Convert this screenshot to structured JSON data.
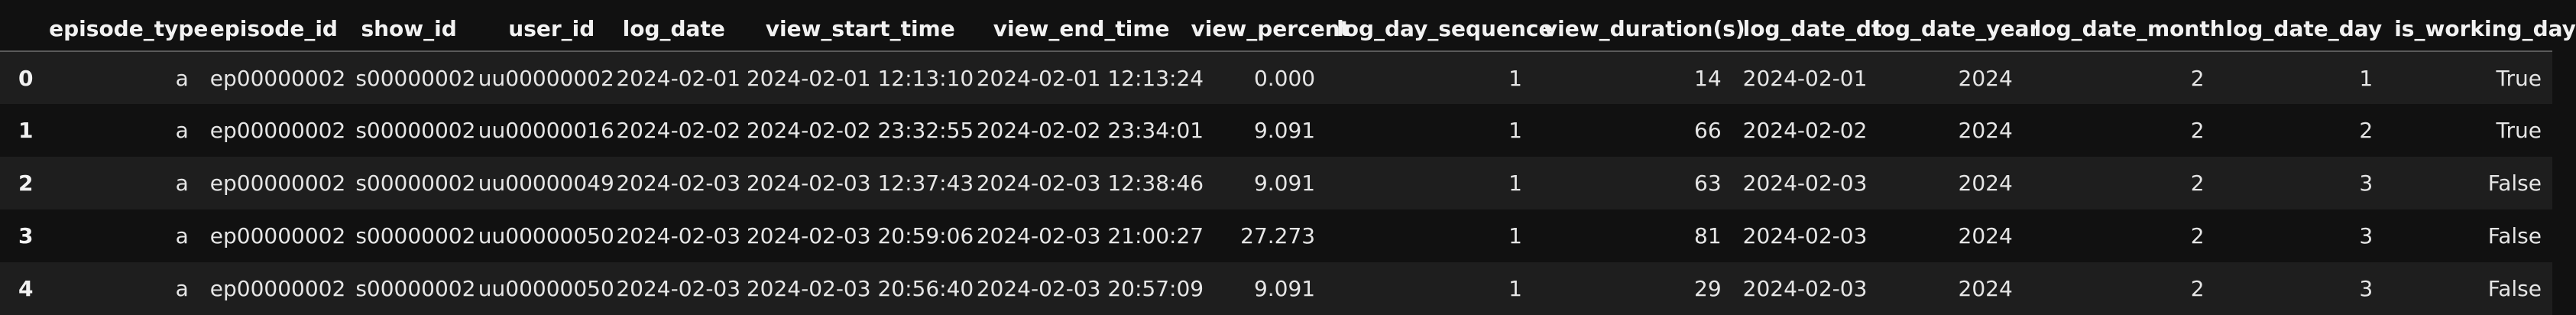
{
  "table": {
    "index_header": "",
    "columns": [
      "episode_type",
      "episode_id",
      "show_id",
      "user_id",
      "log_date",
      "view_start_time",
      "view_end_time",
      "view_percent",
      "log_day_sequence",
      "view_duration(s)",
      "log_date_dt",
      "log_date_year",
      "log_date_month",
      "log_date_day",
      "is_working_day"
    ],
    "rows": [
      {
        "index": "0",
        "cells": [
          "a",
          "ep00000002",
          "s00000002",
          "uu00000002",
          "2024-02-01",
          "2024-02-01 12:13:10",
          "2024-02-01 12:13:24",
          "0.000",
          "1",
          "14",
          "2024-02-01",
          "2024",
          "2",
          "1",
          "True"
        ]
      },
      {
        "index": "1",
        "cells": [
          "a",
          "ep00000002",
          "s00000002",
          "uu00000016",
          "2024-02-02",
          "2024-02-02 23:32:55",
          "2024-02-02 23:34:01",
          "9.091",
          "1",
          "66",
          "2024-02-02",
          "2024",
          "2",
          "2",
          "True"
        ]
      },
      {
        "index": "2",
        "cells": [
          "a",
          "ep00000002",
          "s00000002",
          "uu00000049",
          "2024-02-03",
          "2024-02-03 12:37:43",
          "2024-02-03 12:38:46",
          "9.091",
          "1",
          "63",
          "2024-02-03",
          "2024",
          "2",
          "3",
          "False"
        ]
      },
      {
        "index": "3",
        "cells": [
          "a",
          "ep00000002",
          "s00000002",
          "uu00000050",
          "2024-02-03",
          "2024-02-03 20:59:06",
          "2024-02-03 21:00:27",
          "27.273",
          "1",
          "81",
          "2024-02-03",
          "2024",
          "2",
          "3",
          "False"
        ]
      },
      {
        "index": "4",
        "cells": [
          "a",
          "ep00000002",
          "s00000002",
          "uu00000050",
          "2024-02-03",
          "2024-02-03 20:56:40",
          "2024-02-03 20:57:09",
          "9.091",
          "1",
          "29",
          "2024-02-03",
          "2024",
          "2",
          "3",
          "False"
        ]
      }
    ]
  },
  "colors": {
    "background": "#111111",
    "row_stripe": "#1e1e1e",
    "text": "#e6e6e6",
    "header_border": "#5a5a5a"
  }
}
